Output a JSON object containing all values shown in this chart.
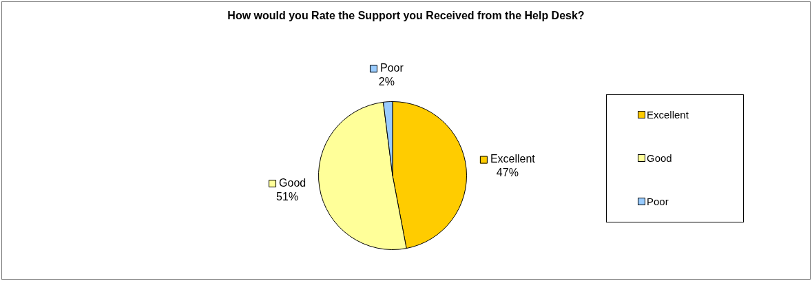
{
  "chart_data": {
    "type": "pie",
    "title": "How would you Rate the Support you Received from the Help Desk?",
    "categories": [
      "Excellent",
      "Good",
      "Poor"
    ],
    "values": [
      47,
      51,
      2
    ],
    "colors": [
      "#ffcc00",
      "#ffff99",
      "#99ccff"
    ],
    "value_labels": [
      "47%",
      "51%",
      "2%"
    ],
    "legend": "right"
  }
}
